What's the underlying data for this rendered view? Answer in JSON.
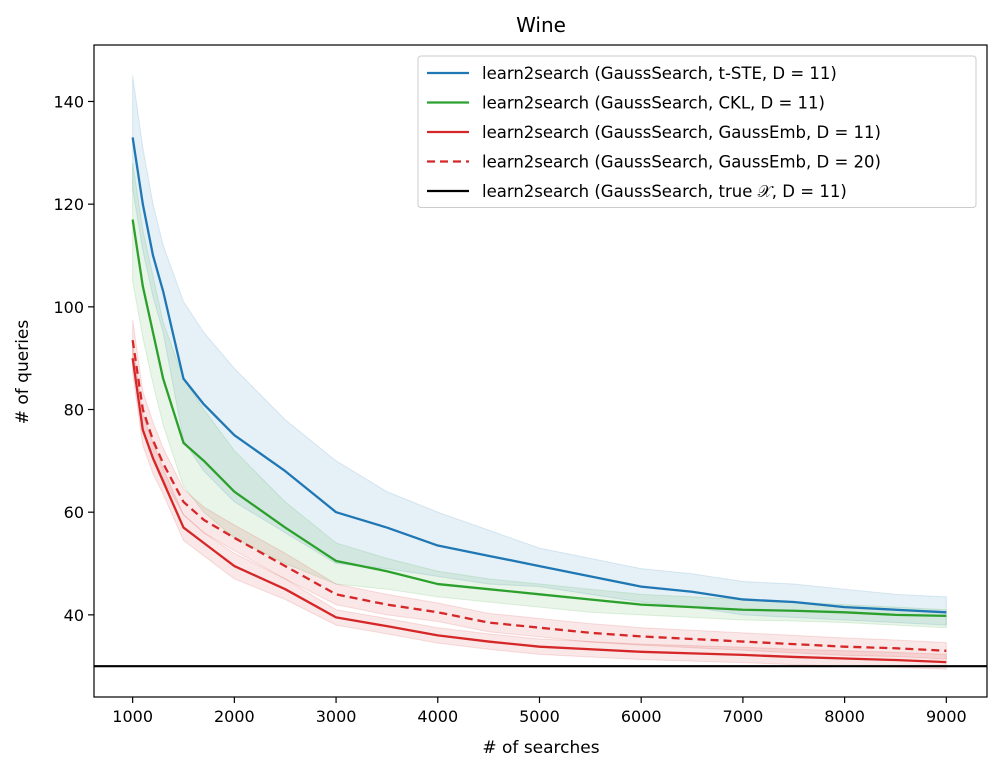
{
  "chart_data": {
    "type": "line",
    "title": "Wine",
    "xlabel": "# of searches",
    "ylabel": "# of queries",
    "xlim": [
      620,
      9400
    ],
    "ylim": [
      24,
      151
    ],
    "x_ticks": [
      1000,
      2000,
      3000,
      4000,
      5000,
      6000,
      7000,
      8000,
      9000
    ],
    "y_ticks": [
      40,
      60,
      80,
      100,
      120,
      140
    ],
    "grid": false,
    "legend_position": "top-right",
    "x": [
      1000,
      1100,
      1200,
      1300,
      1500,
      1700,
      2000,
      2500,
      3000,
      3500,
      4000,
      4500,
      5000,
      5500,
      6000,
      6500,
      7000,
      7500,
      8000,
      8500,
      9000
    ],
    "series": [
      {
        "name": "learn2search (GaussSearch, t-STE, D = 11)",
        "color": "#1f77b4",
        "style": "solid",
        "values": [
          133,
          120,
          110,
          103,
          86,
          81,
          75,
          68,
          60,
          57,
          53.5,
          51.5,
          49.5,
          47.5,
          45.5,
          44.5,
          43,
          42.5,
          41.5,
          41,
          40.5
        ],
        "band_upper": [
          145,
          131,
          120,
          112,
          101,
          95,
          88,
          78,
          70,
          64,
          60,
          56.5,
          53,
          51,
          49,
          48,
          46.5,
          46,
          45,
          44,
          43.5
        ],
        "band_lower": [
          123,
          111,
          102,
          95,
          74,
          68,
          62,
          56,
          50,
          49,
          47.5,
          46,
          45.5,
          44,
          42.5,
          41.5,
          40,
          39.5,
          39,
          38.5,
          38
        ]
      },
      {
        "name": "learn2search (GaussSearch, CKL, D = 11)",
        "color": "#2ca02c",
        "style": "solid",
        "values": [
          117,
          104,
          95,
          86,
          73.5,
          70,
          64,
          57,
          50.5,
          48.5,
          46,
          45,
          44,
          43,
          42,
          41.5,
          41,
          40.8,
          40.5,
          40,
          39.8
        ],
        "band_upper": [
          128,
          115,
          106,
          97,
          86,
          80,
          72,
          62,
          54,
          51,
          48.5,
          47,
          46,
          45,
          44,
          43.5,
          43,
          42.5,
          42,
          41.5,
          41
        ],
        "band_lower": [
          105,
          94,
          85,
          77,
          65,
          60,
          55,
          50,
          46,
          45,
          43.5,
          42.5,
          41.5,
          40.5,
          40,
          39.5,
          39,
          38.8,
          38.5,
          38,
          37.5
        ]
      },
      {
        "name": "learn2search (GaussSearch, GaussEmb, D = 11)",
        "color": "#d62728",
        "style": "solid",
        "values": [
          90,
          76,
          70.5,
          66,
          57,
          54,
          49.5,
          45,
          39.5,
          37.8,
          36,
          34.8,
          33.8,
          33.3,
          32.8,
          32.5,
          32.2,
          31.8,
          31.5,
          31.2,
          30.8
        ],
        "band_upper": [
          93,
          79,
          73.5,
          68.5,
          59.5,
          56,
          52,
          47,
          41,
          39.3,
          37.5,
          36.3,
          35.3,
          34.8,
          34.3,
          34,
          33.7,
          33.3,
          33,
          32.7,
          32.3
        ],
        "band_lower": [
          87,
          73,
          67.5,
          63.5,
          54.5,
          51.5,
          47,
          43,
          38,
          36.3,
          34.5,
          33.3,
          32.3,
          31.8,
          31.3,
          31,
          30.7,
          30.3,
          30,
          29.8,
          29.4
        ]
      },
      {
        "name": "learn2search (GaussSearch, GaussEmb, D = 20)",
        "color": "#d62728",
        "style": "dashed",
        "values": [
          93.5,
          80,
          74,
          69.5,
          62,
          58.5,
          55,
          49.5,
          44,
          42,
          40.5,
          38.5,
          37.5,
          36.5,
          35.8,
          35.3,
          34.8,
          34.3,
          33.8,
          33.5,
          33
        ],
        "band_upper": [
          97.5,
          83.5,
          77.5,
          72.5,
          64.5,
          61,
          57.5,
          52,
          46,
          44,
          42.3,
          40.3,
          39.3,
          38.3,
          37.5,
          37,
          36.5,
          36,
          35.5,
          35.1,
          34.6
        ],
        "band_lower": [
          89.5,
          76.5,
          70.5,
          66.5,
          59.5,
          56,
          52.5,
          47,
          42,
          40,
          38.7,
          36.7,
          35.7,
          34.7,
          34.1,
          33.6,
          33.1,
          32.6,
          32.1,
          31.9,
          31.4
        ]
      },
      {
        "name": "learn2search (GaussSearch, true 𝒳, D = 11)",
        "color": "#000000",
        "style": "hline",
        "value": 30
      }
    ]
  }
}
